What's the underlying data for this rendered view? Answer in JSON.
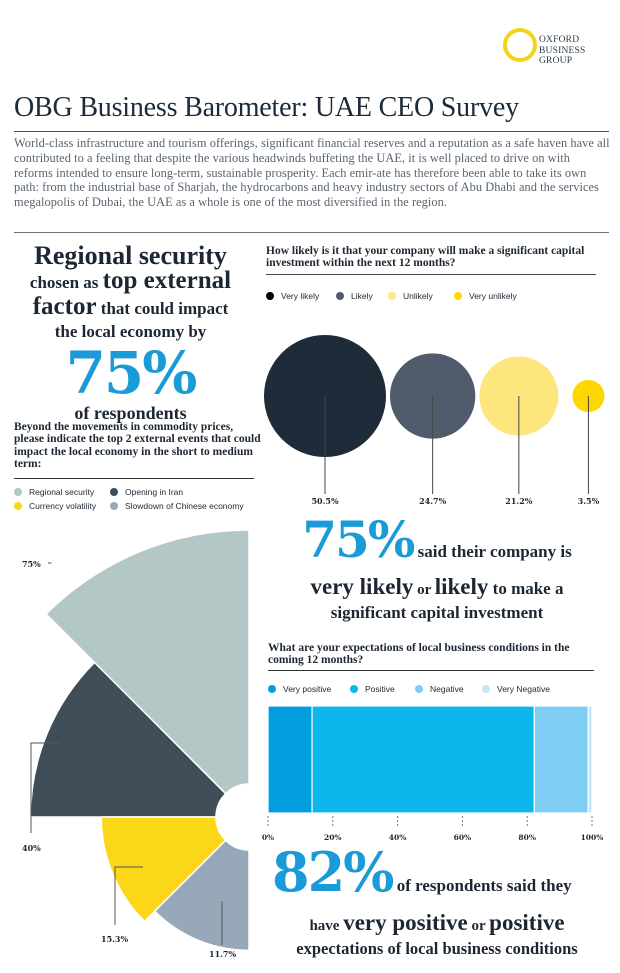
{
  "logo": {
    "lines": [
      "OXFORD",
      "BUSINESS",
      "GROUP"
    ],
    "color": "#f5d31a"
  },
  "header": {
    "title": "OBG Business Barometer: UAE CEO Survey",
    "intro": "World-class infrastructure and tourism offerings, significant financial reserves and a reputation as a safe haven have all contributed to a feeling that despite the various headwinds buffeting the UAE, it is well placed to drive on with reforms intended to ensure long-term, sustainable prosperity. Each emir-ate has therefore been able to take its own path: from the industrial base of Sharjah, the hydrocarbons and heavy industry sectors of Abu Dhabi and the services megalopolis of Dubai, the UAE as a whole is one of the most diversified in the region."
  },
  "headline_left": {
    "line1": "Regional security",
    "line2_pre": "chosen as ",
    "line2_big": "top external",
    "line3_big": "factor",
    "line3_post": " that could impact",
    "line4": "the local economy by",
    "pct": "75%",
    "line5": "of respondents"
  },
  "stat_investment": {
    "pct": "75%",
    "line1": " said their company is",
    "big1": "very likely",
    "mid": " or ",
    "big2": "likely",
    "line2_post": " to make a",
    "line3": "significant capital investment"
  },
  "stat_conditions": {
    "pct": "82%",
    "line1": " of respondents said they",
    "pre2": "have ",
    "big1": "very positive",
    "mid": " or ",
    "big2": "positive",
    "line3": "expectations of local business conditions"
  },
  "chart_data": [
    {
      "type": "pie",
      "variant": "polar-area (nightingale rose), quarter segments of 45 degrees",
      "title": "Beyond the movements in commodity prices, please indicate the top 2 external events that could  impact the local economy in the short to medium term:",
      "legend_position": "top",
      "categories": [
        "Regional security",
        "Opening in Iran",
        "Currency volatility",
        "Slowdown of Chinese economy"
      ],
      "values": [
        75,
        40,
        15.3,
        11.7
      ],
      "labels": [
        "75%",
        "40%",
        "15.3%",
        "11.7%"
      ],
      "colors": [
        "#b3c7c6",
        "#3f4d59",
        "#fcd718",
        "#97a8b9"
      ]
    },
    {
      "type": "scatter",
      "variant": "bubble",
      "title": "How likely is it that your company will make a significant capital investment within the next 12 months?",
      "legend_position": "top",
      "categories": [
        "Very likely",
        "Likely",
        "Unlikely",
        "Very unlikely"
      ],
      "values": [
        50.5,
        24.7,
        21.2,
        3.5
      ],
      "labels": [
        "50.5%",
        "24.7%",
        "21.2%",
        "3.5%"
      ],
      "colors": [
        "#1e2b38",
        "#505c6b",
        "#fde67e",
        "#fcd700"
      ]
    },
    {
      "type": "bar",
      "variant": "100% stacked horizontal",
      "title": "What are your expectations of local business conditions in the coming 12 months?",
      "legend_position": "top",
      "categories": [
        "Very positive",
        "Positive",
        "Negative",
        "Very Negative"
      ],
      "values": [
        13.6,
        68.6,
        16.6,
        1.2
      ],
      "colors": [
        "#009ddf",
        "#0cb7ec",
        "#80cdf3",
        "#c3e6f8"
      ],
      "xlim": [
        0,
        100
      ],
      "xticks": [
        "0%",
        "20%",
        "40%",
        "60%",
        "80%",
        "100%"
      ]
    }
  ]
}
